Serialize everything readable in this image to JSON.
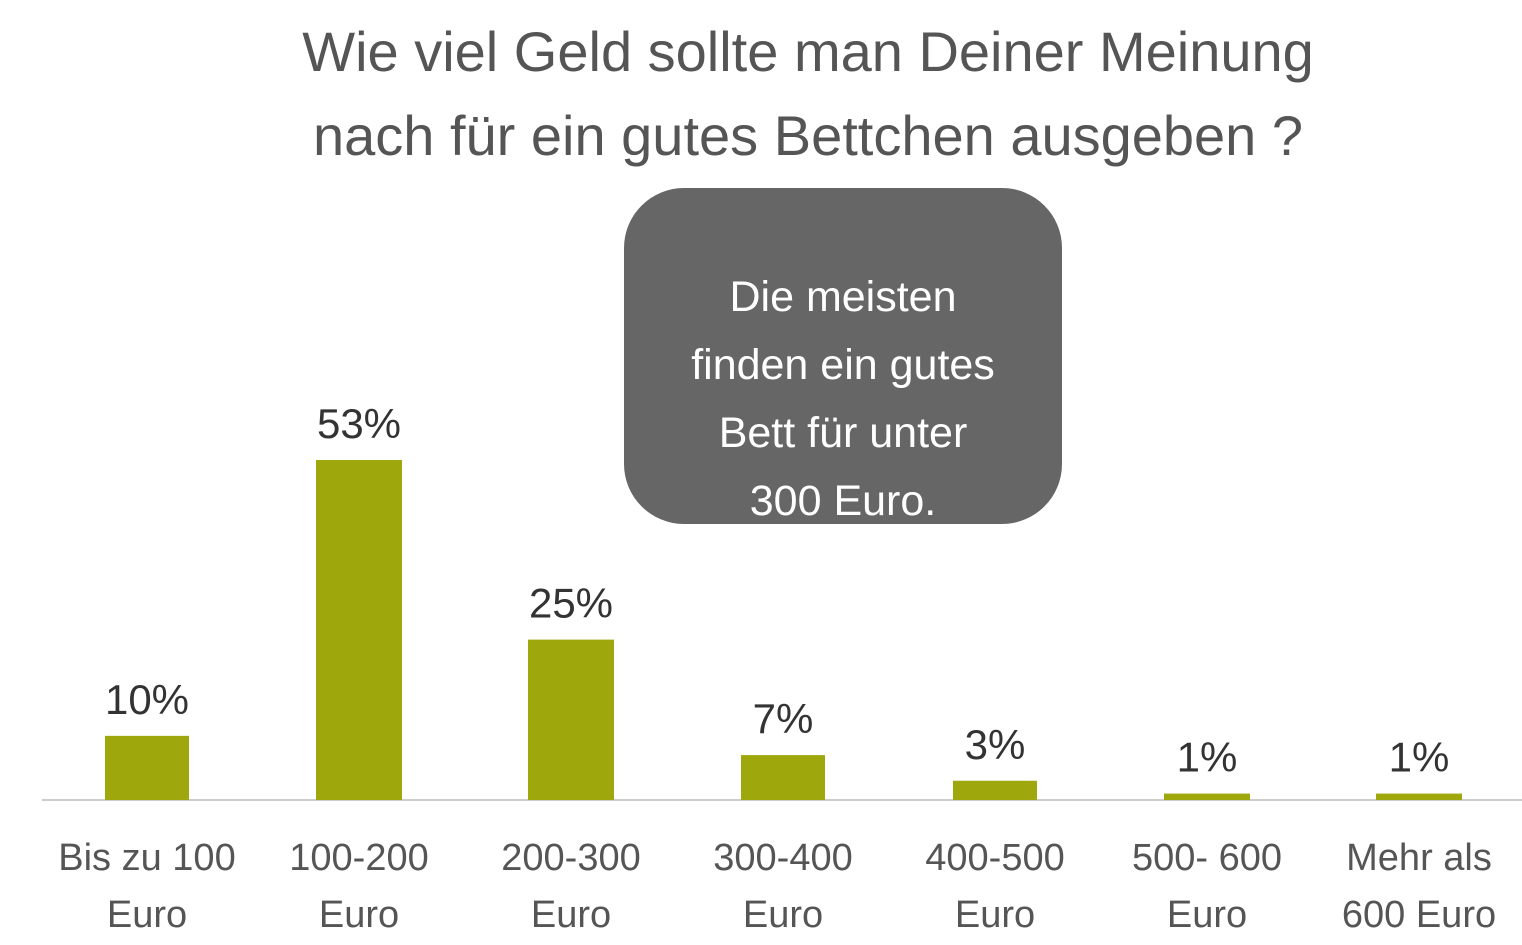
{
  "title_lines": [
    "Wie viel Geld sollte man Deiner Meinung",
    "nach für ein gutes Bettchen ausgeben ?"
  ],
  "callout": "Die meisten\nfinden ein gutes\nBett für unter\n300 Euro.",
  "colors": {
    "bar": "#9ea80c",
    "callout_bg": "#666666",
    "axis": "#cccccc"
  },
  "chart_data": {
    "type": "bar",
    "categories": [
      [
        "Bis zu 100",
        "Euro"
      ],
      [
        "100-200",
        "Euro"
      ],
      [
        "200-300",
        "Euro"
      ],
      [
        "300-400",
        "Euro"
      ],
      [
        "400-500",
        "Euro"
      ],
      [
        "500- 600",
        "Euro"
      ],
      [
        "Mehr als",
        "600 Euro"
      ]
    ],
    "values": [
      10,
      53,
      25,
      7,
      3,
      1,
      1
    ],
    "value_labels": [
      "10%",
      "53%",
      "25%",
      "7%",
      "3%",
      "1%",
      "1%"
    ],
    "unit": "%",
    "ylim": [
      0,
      60
    ],
    "grid": false,
    "legend": "none"
  }
}
